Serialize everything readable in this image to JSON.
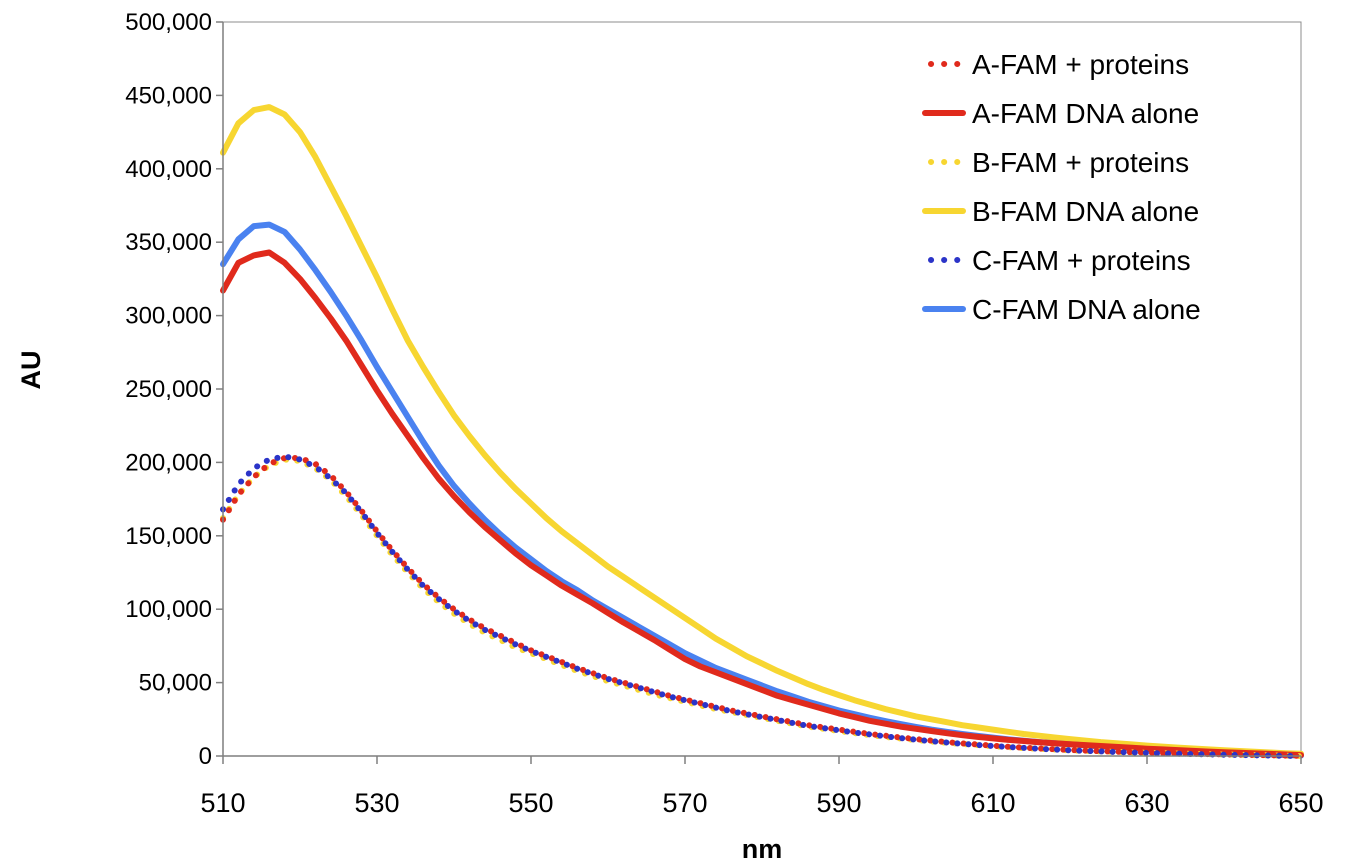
{
  "chart_data": {
    "type": "line",
    "title": "",
    "xlabel": "nm",
    "ylabel": "AU",
    "xlim": [
      510,
      650
    ],
    "ylim": [
      0,
      500000
    ],
    "x_ticks": [
      510,
      530,
      550,
      570,
      590,
      610,
      630,
      650
    ],
    "x_tick_labels": [
      "510",
      "530",
      "550",
      "570",
      "590",
      "610",
      "630",
      "650"
    ],
    "y_ticks": [
      0,
      50000,
      100000,
      150000,
      200000,
      250000,
      300000,
      350000,
      400000,
      450000,
      500000
    ],
    "y_tick_labels": [
      "0",
      "50,000",
      "100,000",
      "150,000",
      "200,000",
      "250,000",
      "300,000",
      "350,000",
      "400,000",
      "450,000",
      "500,000"
    ],
    "grid": false,
    "legend_position": "top-right",
    "x": [
      510,
      512,
      514,
      516,
      518,
      520,
      522,
      524,
      526,
      528,
      530,
      532,
      534,
      536,
      538,
      540,
      542,
      544,
      546,
      548,
      550,
      552,
      554,
      556,
      558,
      560,
      562,
      564,
      566,
      568,
      570,
      572,
      574,
      576,
      578,
      580,
      582,
      584,
      586,
      588,
      590,
      592,
      594,
      596,
      598,
      600,
      602,
      604,
      606,
      608,
      610,
      612,
      614,
      616,
      618,
      620,
      622,
      624,
      626,
      628,
      630,
      632,
      634,
      636,
      638,
      640,
      642,
      644,
      646,
      648,
      650
    ],
    "series": [
      {
        "name": "A-FAM + proteins",
        "color": "#e02a1c",
        "style": "dotted",
        "values": [
          161000,
          178000,
          190000,
          199000,
          203000,
          203000,
          199000,
          191000,
          180000,
          167000,
          153000,
          140000,
          128000,
          117000,
          108000,
          100000,
          93000,
          87000,
          82000,
          77000,
          72000,
          68000,
          64000,
          60000,
          56500,
          53000,
          50000,
          47000,
          44000,
          41000,
          38500,
          36000,
          33500,
          31000,
          29000,
          27000,
          25000,
          23000,
          21000,
          19500,
          18000,
          16500,
          15000,
          13800,
          12600,
          11500,
          10500,
          9500,
          8600,
          7800,
          7000,
          6300,
          5700,
          5100,
          4600,
          4100,
          3700,
          3300,
          2900,
          2600,
          2300,
          2000,
          1800,
          1500,
          1300,
          1100,
          900,
          700,
          500,
          300,
          100
        ]
      },
      {
        "name": "A-FAM DNA alone",
        "color": "#e02a1c",
        "style": "solid",
        "values": [
          317000,
          336000,
          341000,
          343000,
          336000,
          325000,
          312000,
          298000,
          283000,
          266000,
          249000,
          233000,
          218000,
          203000,
          189000,
          177000,
          166000,
          156000,
          147000,
          138000,
          130000,
          123000,
          116000,
          110000,
          104000,
          97500,
          91000,
          85000,
          79000,
          72500,
          66000,
          61000,
          57000,
          53000,
          49000,
          45000,
          41000,
          38000,
          35000,
          32000,
          29000,
          26500,
          24000,
          22000,
          20000,
          18500,
          17000,
          15500,
          14200,
          13000,
          12000,
          11000,
          10200,
          9400,
          8700,
          8000,
          7400,
          6800,
          6200,
          5600,
          5000,
          4500,
          4000,
          3500,
          3000,
          2600,
          2200,
          1800,
          1400,
          1000,
          600
        ]
      },
      {
        "name": "B-FAM + proteins",
        "color": "#f7d631",
        "style": "dotted",
        "values": [
          162000,
          178000,
          190000,
          198000,
          202000,
          201000,
          196000,
          188000,
          177000,
          164000,
          150000,
          137000,
          125000,
          114000,
          105000,
          97000,
          90000,
          84000,
          79000,
          74000,
          70000,
          66000,
          62000,
          58000,
          54500,
          51000,
          48000,
          45000,
          42000,
          39500,
          37000,
          34500,
          32000,
          30000,
          28000,
          26000,
          24000,
          22000,
          20000,
          18500,
          17000,
          15600,
          14300,
          13000,
          11900,
          10900,
          9900,
          9000,
          8200,
          7400,
          6700,
          6000,
          5400,
          4900,
          4400,
          3900,
          3500,
          3100,
          2800,
          2500,
          2200,
          1900,
          1700,
          1400,
          1200,
          1000,
          800,
          600,
          400,
          200,
          0
        ]
      },
      {
        "name": "B-FAM DNA alone",
        "color": "#f7d631",
        "style": "solid",
        "values": [
          411000,
          431000,
          440000,
          442000,
          437000,
          425000,
          408000,
          388000,
          368000,
          347000,
          326000,
          304000,
          283000,
          265000,
          248000,
          232000,
          218000,
          205000,
          193000,
          182000,
          172000,
          162000,
          153000,
          145000,
          137000,
          129000,
          122000,
          115000,
          108000,
          101000,
          94000,
          87000,
          80000,
          74000,
          68000,
          63000,
          58000,
          53500,
          49000,
          45000,
          41500,
          38000,
          35000,
          32000,
          29500,
          27000,
          25000,
          23000,
          21000,
          19500,
          18000,
          16500,
          15000,
          13800,
          12600,
          11500,
          10500,
          9500,
          8700,
          7900,
          7100,
          6400,
          5700,
          5100,
          4500,
          3900,
          3400,
          2900,
          2400,
          1900,
          1500
        ]
      },
      {
        "name": "C-FAM + proteins",
        "color": "#2b34c8",
        "style": "dotted",
        "values": [
          168000,
          185000,
          196000,
          202000,
          204000,
          202000,
          197000,
          189000,
          179000,
          166000,
          152000,
          139000,
          127000,
          116000,
          107000,
          99000,
          92000,
          86000,
          81000,
          76000,
          71500,
          67500,
          63500,
          59500,
          56000,
          52500,
          49500,
          46500,
          43500,
          40500,
          38000,
          35500,
          33000,
          30500,
          28500,
          26500,
          24500,
          22500,
          20500,
          19000,
          17500,
          16000,
          14700,
          13400,
          12200,
          11100,
          10100,
          9200,
          8300,
          7500,
          6800,
          6100,
          5500,
          4900,
          4400,
          3900,
          3500,
          3100,
          2700,
          2400,
          2100,
          1800,
          1600,
          1300,
          1100,
          900,
          700,
          500,
          300,
          100,
          0
        ]
      },
      {
        "name": "C-FAM DNA alone",
        "color": "#4a82f0",
        "style": "solid",
        "values": [
          335000,
          352000,
          361000,
          362000,
          357000,
          345000,
          331000,
          316000,
          300000,
          283000,
          265000,
          248000,
          231000,
          214000,
          198000,
          184000,
          172000,
          161000,
          151000,
          142000,
          134000,
          126000,
          119000,
          113000,
          106000,
          100000,
          94000,
          88000,
          82000,
          76000,
          70000,
          65000,
          60000,
          56000,
          52000,
          48000,
          44000,
          40500,
          37000,
          34000,
          31000,
          28500,
          26000,
          23800,
          21700,
          19800,
          18000,
          16400,
          15000,
          13700,
          12500,
          11400,
          10400,
          9500,
          8700,
          7900,
          7200,
          6500,
          5900,
          5300,
          4700,
          4200,
          3700,
          3200,
          2700,
          2300,
          1900,
          1500,
          1100,
          700,
          300
        ]
      }
    ]
  }
}
